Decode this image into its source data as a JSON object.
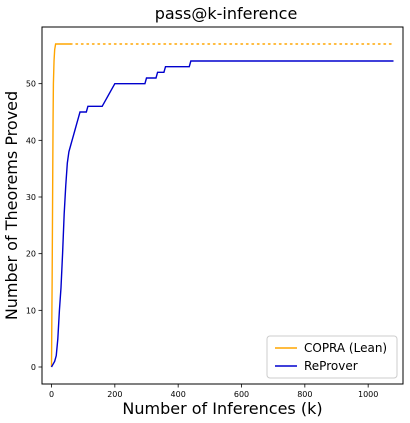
{
  "chart_data": {
    "type": "line",
    "title": "pass@k-inference",
    "xlabel": "Number of Inferences (k)",
    "ylabel": "Number of Theorems Proved",
    "xlim": [
      -30,
      1110
    ],
    "ylim": [
      -3,
      60
    ],
    "xticks": [
      0,
      200,
      400,
      600,
      800,
      1000
    ],
    "yticks": [
      0,
      10,
      20,
      30,
      40,
      50
    ],
    "grid": false,
    "legend_position": "bottom-right",
    "series": [
      {
        "name": "COPRA (Lean)",
        "color": "#FFA500",
        "style": "solid",
        "points": [
          [
            0,
            0
          ],
          [
            1,
            8
          ],
          [
            2,
            15
          ],
          [
            3,
            25
          ],
          [
            4,
            35
          ],
          [
            5,
            44
          ],
          [
            6,
            50
          ],
          [
            8,
            54
          ],
          [
            10,
            56
          ],
          [
            13,
            57
          ],
          [
            60,
            57
          ]
        ]
      },
      {
        "name": "COPRA (Lean) extension",
        "legend": false,
        "color": "#FFA500",
        "style": "dotted",
        "points": [
          [
            60,
            57
          ],
          [
            1080,
            57
          ]
        ]
      },
      {
        "name": "ReProver",
        "color": "#0000CD",
        "style": "solid",
        "points": [
          [
            0,
            0
          ],
          [
            5,
            0.5
          ],
          [
            10,
            1
          ],
          [
            15,
            2
          ],
          [
            20,
            5
          ],
          [
            25,
            10
          ],
          [
            30,
            14
          ],
          [
            35,
            20
          ],
          [
            40,
            27
          ],
          [
            45,
            32
          ],
          [
            50,
            36
          ],
          [
            55,
            38
          ],
          [
            60,
            39
          ],
          [
            65,
            40
          ],
          [
            70,
            41
          ],
          [
            75,
            42
          ],
          [
            80,
            43
          ],
          [
            85,
            44
          ],
          [
            90,
            45
          ],
          [
            110,
            45
          ],
          [
            115,
            46
          ],
          [
            160,
            46
          ],
          [
            170,
            47
          ],
          [
            180,
            48
          ],
          [
            190,
            49
          ],
          [
            200,
            50
          ],
          [
            295,
            50
          ],
          [
            300,
            51
          ],
          [
            330,
            51
          ],
          [
            335,
            52
          ],
          [
            355,
            52
          ],
          [
            360,
            53
          ],
          [
            435,
            53
          ],
          [
            440,
            54
          ],
          [
            1080,
            54
          ]
        ]
      }
    ]
  }
}
